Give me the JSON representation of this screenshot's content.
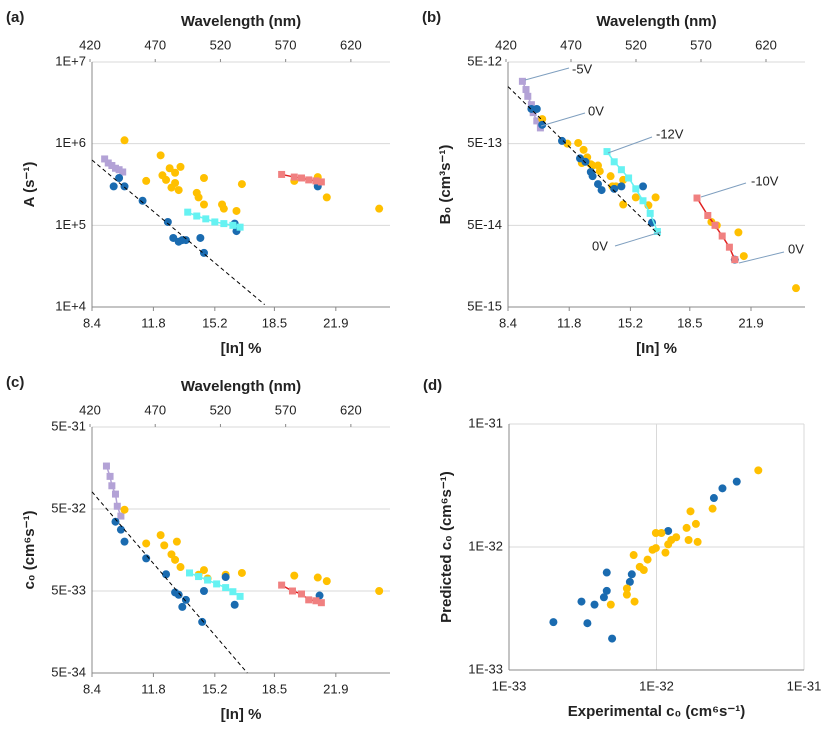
{
  "chart_data": [
    {
      "type": "scatter",
      "panel_label": "(a)",
      "x2label": "Wavelength (nm)",
      "xlabel": "[In] %",
      "ylabel": "A (s⁻¹)",
      "xlim": [
        8.4,
        24.9
      ],
      "xticks": [
        8.4,
        11.8,
        15.2,
        18.5,
        21.9
      ],
      "x2lim": [
        420,
        650
      ],
      "x2ticks": [
        420,
        470,
        520,
        570,
        620
      ],
      "ylim": [
        10000,
        10000000
      ],
      "log_y": true,
      "grid": true,
      "yticks": [
        {
          "value": 10000,
          "label": "1E+4"
        },
        {
          "value": 100000,
          "label": "1E+5"
        },
        {
          "value": 1000000,
          "label": "1E+6"
        },
        {
          "value": 10000000,
          "label": "1E+7"
        }
      ],
      "series": [
        {
          "color": "#b3a2d6",
          "marker": "square",
          "line": true,
          "x": [
            9.1,
            9.3,
            9.5,
            9.7,
            9.9,
            10.1
          ],
          "values": [
            650000,
            580000,
            540000,
            500000,
            480000,
            450000
          ]
        },
        {
          "color": "#ffc000",
          "marker": "circle",
          "line": false,
          "x": [
            10.2,
            11.4,
            12.2,
            12.3,
            12.5,
            12.7,
            12.8,
            13.0,
            13.2,
            13.3,
            13.0,
            14.2,
            14.3,
            14.6,
            14.6,
            15.6,
            15.7,
            16.4,
            16.7,
            19.6,
            20.9,
            21.4,
            24.3
          ],
          "values": [
            1100000,
            350000,
            720000,
            410000,
            360000,
            500000,
            290000,
            330000,
            270000,
            520000,
            440000,
            250000,
            220000,
            380000,
            180000,
            180000,
            160000,
            150000,
            320000,
            350000,
            390000,
            220000,
            160000
          ]
        },
        {
          "color": "#1a6bb0",
          "marker": "circle",
          "line": false,
          "x": [
            9.6,
            9.9,
            10.2,
            11.2,
            12.6,
            12.9,
            13.2,
            13.4,
            13.6,
            14.4,
            14.6,
            16.3,
            16.4,
            20.9
          ],
          "values": [
            300000,
            380000,
            300000,
            200000,
            110000,
            70000,
            63000,
            66000,
            66000,
            70000,
            46000,
            105000,
            85000,
            300000
          ]
        },
        {
          "color": "#66f2f2",
          "marker": "square",
          "line": true,
          "x": [
            13.7,
            14.2,
            14.7,
            15.2,
            15.7,
            16.2,
            16.6
          ],
          "values": [
            145000,
            130000,
            120000,
            110000,
            105000,
            100000,
            95000
          ]
        },
        {
          "color": "#f08080",
          "line_color": "#e02020",
          "marker": "square",
          "line": true,
          "x": [
            18.9,
            19.6,
            20.0,
            20.4,
            20.8,
            21.1
          ],
          "values": [
            420000,
            390000,
            380000,
            360000,
            350000,
            340000
          ]
        },
        {
          "color": "#000000",
          "marker": "none",
          "line": true,
          "dash": true,
          "x": [
            8.4,
            17.96
          ],
          "values": [
            630000,
            10700
          ]
        }
      ]
    },
    {
      "type": "scatter",
      "panel_label": "(b)",
      "x2label": "Wavelength (nm)",
      "xlabel": "[In] %",
      "ylabel": "B₀ (cm³s⁻¹)",
      "xlim": [
        8.4,
        24.9
      ],
      "xticks": [
        8.4,
        11.8,
        15.2,
        18.5,
        21.9
      ],
      "x2lim": [
        420,
        650
      ],
      "x2ticks": [
        420,
        470,
        520,
        570,
        620
      ],
      "ylim": [
        5e-15,
        5e-12
      ],
      "log_y": true,
      "grid": true,
      "yticks": [
        {
          "value": 5e-15,
          "label": "5E-15"
        },
        {
          "value": 5e-14,
          "label": "5E-14"
        },
        {
          "value": 5e-13,
          "label": "5E-13"
        },
        {
          "value": 5e-12,
          "label": "5E-12"
        }
      ],
      "annotations": [
        "-5V",
        "0V",
        "-12V",
        "0V",
        "-10V",
        "0V"
      ],
      "series": [
        {
          "color": "#b3a2d6",
          "marker": "square",
          "line": true,
          "x": [
            9.2,
            9.4,
            9.5,
            9.7,
            9.8,
            10.0,
            10.2
          ],
          "values": [
            2.9e-12,
            2.3e-12,
            1.9e-12,
            1.5e-12,
            1.2e-12,
            9.5e-13,
            7.8e-13
          ]
        },
        {
          "color": "#ffc000",
          "marker": "circle",
          "line": false,
          "x": [
            10.3,
            11.7,
            12.3,
            12.5,
            12.6,
            12.8,
            13.0,
            13.1,
            13.4,
            13.5,
            14.1,
            14.2,
            14.4,
            14.8,
            14.8,
            15.5,
            16.2,
            16.6,
            19.7,
            20.0,
            21.2,
            21.5,
            24.4
          ],
          "values": [
            1e-12,
            5e-13,
            5.1e-13,
            2.9e-13,
            4.2e-13,
            3.4e-13,
            2.8e-13,
            2.7e-13,
            2.7e-13,
            2.3e-13,
            2e-13,
            1.5e-13,
            1.5e-13,
            1.8e-13,
            9e-14,
            1.1e-13,
            8.8e-14,
            1.1e-13,
            5.5e-14,
            5e-14,
            4.1e-14,
            2.1e-14,
            8.5e-15
          ]
        },
        {
          "color": "#1a6bb0",
          "marker": "circle",
          "line": false,
          "x": [
            9.7,
            10.0,
            10.3,
            11.4,
            12.4,
            12.7,
            13.0,
            13.1,
            13.4,
            13.6,
            14.3,
            14.7,
            15.9,
            16.4,
            21.0
          ],
          "values": [
            1.33e-12,
            1.33e-12,
            8.5e-13,
            5.4e-13,
            3.3e-13,
            3e-13,
            2.25e-13,
            2e-13,
            1.6e-13,
            1.35e-13,
            1.4e-13,
            1.5e-13,
            1.5e-13,
            5.4e-14,
            1.9e-14
          ]
        },
        {
          "color": "#66f2f2",
          "marker": "square",
          "line": true,
          "x": [
            13.9,
            14.3,
            14.7,
            15.1,
            15.5,
            15.9,
            16.3,
            16.7
          ],
          "values": [
            4e-13,
            3e-13,
            2.4e-13,
            1.9e-13,
            1.4e-13,
            1e-13,
            7e-14,
            4.2e-14
          ]
        },
        {
          "color": "#f08080",
          "line_color": "#e02020",
          "marker": "square",
          "line": true,
          "x": [
            18.9,
            19.5,
            19.9,
            20.3,
            20.7,
            21.0
          ],
          "values": [
            1.08e-13,
            6.6e-14,
            5e-14,
            3.7e-14,
            2.7e-14,
            1.9e-14
          ]
        },
        {
          "color": "#000000",
          "marker": "none",
          "line": true,
          "dash": true,
          "x": [
            8.4,
            16.85
          ],
          "values": [
            2.5e-12,
            3.7e-14
          ]
        }
      ]
    },
    {
      "type": "scatter",
      "panel_label": "(c)",
      "x2label": "Wavelength (nm)",
      "xlabel": "[In] %",
      "ylabel": "c₀ (cm⁶s⁻¹)",
      "xlim": [
        8.4,
        24.9
      ],
      "xticks": [
        8.4,
        11.8,
        15.2,
        18.5,
        21.9
      ],
      "x2lim": [
        420,
        650
      ],
      "x2ticks": [
        420,
        470,
        520,
        570,
        620
      ],
      "ylim": [
        5e-34,
        5e-31
      ],
      "log_y": true,
      "grid": true,
      "yticks": [
        {
          "value": 5e-34,
          "label": "5E-34"
        },
        {
          "value": 5e-33,
          "label": "5E-33"
        },
        {
          "value": 5e-32,
          "label": "5E-32"
        },
        {
          "value": 5e-31,
          "label": "5E-31"
        }
      ],
      "series": [
        {
          "color": "#b3a2d6",
          "marker": "square",
          "line": true,
          "x": [
            9.2,
            9.4,
            9.5,
            9.7,
            9.8,
            10.0
          ],
          "values": [
            1.67e-31,
            1.25e-31,
            9.6e-32,
            7.6e-32,
            5.4e-32,
            4.1e-32
          ]
        },
        {
          "color": "#ffc000",
          "marker": "circle",
          "line": false,
          "x": [
            10.2,
            11.4,
            12.2,
            12.4,
            12.8,
            13.0,
            13.1,
            13.3,
            14.3,
            14.6,
            14.8,
            15.8,
            16.7,
            19.6,
            20.9,
            21.4,
            24.3
          ],
          "values": [
            4.9e-32,
            1.9e-32,
            2.4e-32,
            1.8e-32,
            1.4e-32,
            1.2e-32,
            2e-32,
            9.8e-33,
            7.9e-33,
            9e-33,
            7.1e-33,
            7.9e-33,
            8.3e-33,
            7.7e-33,
            7.3e-33,
            6.6e-33,
            5e-33
          ]
        },
        {
          "color": "#1a6bb0",
          "marker": "circle",
          "line": false,
          "x": [
            9.7,
            10.0,
            10.2,
            11.4,
            12.5,
            13.0,
            13.2,
            13.4,
            13.6,
            14.5,
            14.6,
            15.8,
            16.3,
            21.0
          ],
          "values": [
            3.5e-32,
            2.8e-32,
            2e-32,
            1.25e-32,
            8e-33,
            4.8e-33,
            4.5e-33,
            3.2e-33,
            3.9e-33,
            2.1e-33,
            5e-33,
            7.4e-33,
            3.4e-33,
            4.4e-33
          ]
        },
        {
          "color": "#66f2f2",
          "marker": "square",
          "line": true,
          "x": [
            13.8,
            14.3,
            14.8,
            15.3,
            15.8,
            16.2,
            16.6
          ],
          "values": [
            8.3e-33,
            7.5e-33,
            6.8e-33,
            6.1e-33,
            5.5e-33,
            4.9e-33,
            4.3e-33
          ]
        },
        {
          "color": "#f08080",
          "line_color": "#e02020",
          "marker": "square",
          "line": true,
          "x": [
            18.9,
            19.5,
            20.0,
            20.4,
            20.8,
            21.1
          ],
          "values": [
            5.9e-33,
            5e-33,
            4.6e-33,
            3.9e-33,
            3.8e-33,
            3.6e-33
          ]
        },
        {
          "color": "#000000",
          "marker": "none",
          "line": true,
          "dash": true,
          "x": [
            8.4,
            17.0
          ],
          "values": [
            8.1e-32,
            5e-34
          ]
        }
      ]
    },
    {
      "type": "scatter",
      "panel_label": "(d)",
      "xlabel": "Experimental c₀ (cm⁶s⁻¹)",
      "ylabel": "Predicted  c₀ (cm⁶s⁻¹)",
      "xlim": [
        1e-33,
        1e-31
      ],
      "log_x": true,
      "ylim": [
        1e-33,
        1e-31
      ],
      "log_y": true,
      "grid": true,
      "xticks": [
        {
          "value": 1e-33,
          "label": "1E-33"
        },
        {
          "value": 1e-32,
          "label": "1E-32"
        },
        {
          "value": 1e-31,
          "label": "1E-31"
        }
      ],
      "yticks": [
        {
          "value": 1e-33,
          "label": "1E-33"
        },
        {
          "value": 1e-32,
          "label": "1E-32"
        },
        {
          "value": 1e-31,
          "label": "1E-31"
        }
      ],
      "series": [
        {
          "color": "#1a6bb0",
          "marker": "circle",
          "line": false,
          "x": [
            2e-33,
            3.1e-33,
            3.4e-33,
            3.8e-33,
            4.4e-33,
            4.6e-33,
            4.6e-33,
            5e-33,
            6.6e-33,
            6.8e-33,
            1.2e-32,
            2.45e-32,
            2.8e-32,
            3.5e-32
          ],
          "values": [
            2.45e-33,
            3.6e-33,
            2.4e-33,
            3.4e-33,
            3.9e-33,
            4.4e-33,
            6.2e-33,
            1.8e-33,
            5.2e-33,
            6e-33,
            1.35e-32,
            2.5e-32,
            3e-32,
            3.4e-32
          ]
        },
        {
          "color": "#ffc000",
          "marker": "circle",
          "line": false,
          "x": [
            4.9e-33,
            6.3e-33,
            6.3e-33,
            7.1e-33,
            7e-33,
            7.7e-33,
            8.2e-33,
            8.7e-33,
            9.4e-33,
            9.9e-33,
            9.9e-33,
            1.08e-32,
            1.15e-32,
            1.2e-32,
            1.26e-32,
            1.36e-32,
            1.6e-32,
            1.65e-32,
            1.7e-32,
            1.85e-32,
            1.9e-32,
            2.4e-32,
            4.9e-32
          ],
          "values": [
            3.4e-33,
            4.1e-33,
            4.6e-33,
            3.6e-33,
            8.6e-33,
            6.9e-33,
            6.5e-33,
            7.9e-33,
            9.5e-33,
            9.8e-33,
            1.3e-32,
            1.3e-32,
            9e-33,
            1.05e-32,
            1.14e-32,
            1.2e-32,
            1.43e-32,
            1.14e-32,
            1.95e-32,
            1.54e-32,
            1.1e-32,
            2.05e-32,
            4.2e-32
          ]
        }
      ]
    }
  ]
}
